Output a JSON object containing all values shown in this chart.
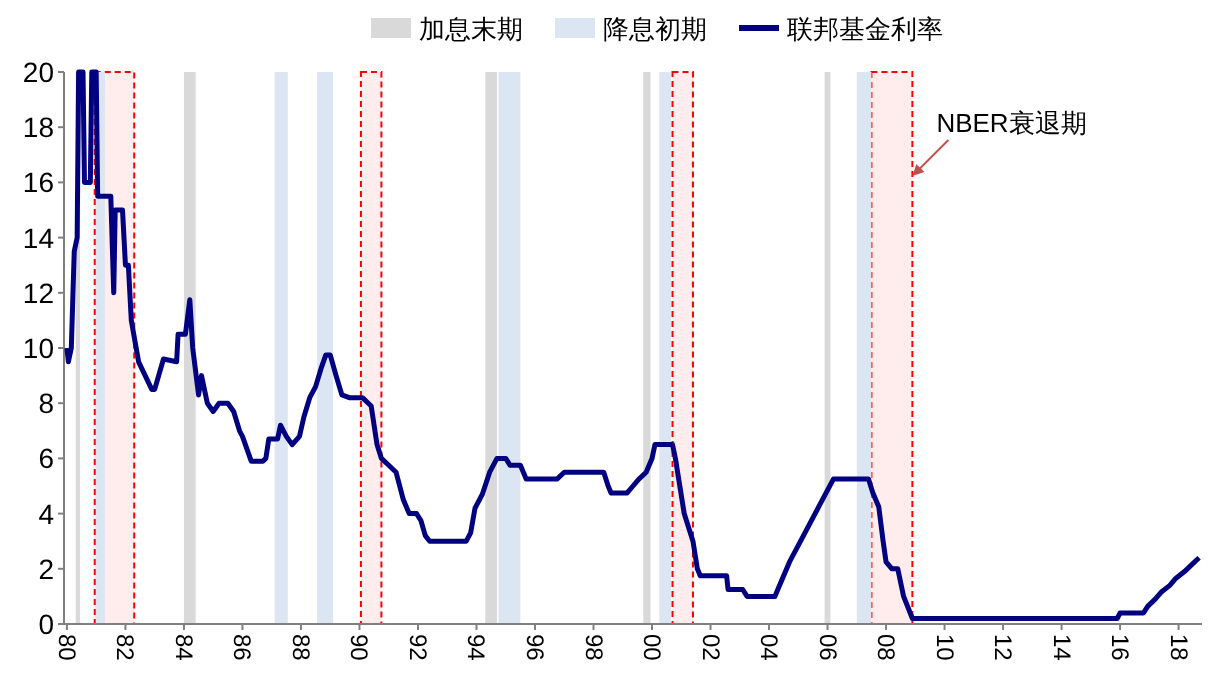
{
  "chart_data": {
    "type": "line",
    "legend": "top",
    "marker": "none",
    "line_style": "solid",
    "grid": false,
    "xlim": [
      1979.9,
      2018.8
    ],
    "ylim": [
      0,
      20
    ],
    "xticks": [
      {
        "value": 1980,
        "label": "80"
      },
      {
        "value": 1982,
        "label": "82"
      },
      {
        "value": 1984,
        "label": "84"
      },
      {
        "value": 1986,
        "label": "86"
      },
      {
        "value": 1988,
        "label": "88"
      },
      {
        "value": 1990,
        "label": "90"
      },
      {
        "value": 1992,
        "label": "92"
      },
      {
        "value": 1994,
        "label": "94"
      },
      {
        "value": 1996,
        "label": "96"
      },
      {
        "value": 1998,
        "label": "98"
      },
      {
        "value": 2000,
        "label": "00"
      },
      {
        "value": 2002,
        "label": "02"
      },
      {
        "value": 2004,
        "label": "04"
      },
      {
        "value": 2006,
        "label": "06"
      },
      {
        "value": 2008,
        "label": "08"
      },
      {
        "value": 2010,
        "label": "10"
      },
      {
        "value": 2012,
        "label": "12"
      },
      {
        "value": 2014,
        "label": "14"
      },
      {
        "value": 2016,
        "label": "16"
      },
      {
        "value": 2018,
        "label": "18"
      }
    ],
    "yticks": [
      0,
      2,
      4,
      6,
      8,
      10,
      12,
      14,
      16,
      18,
      20
    ],
    "bands": [
      {
        "axis": "x",
        "from": 1980.3,
        "to": 1980.45,
        "label": "加息末期",
        "color": "#d9d9d9"
      },
      {
        "axis": "x",
        "from": 1984.0,
        "to": 1984.4,
        "color": "#d9d9d9"
      },
      {
        "axis": "x",
        "from": 1994.3,
        "to": 1994.7,
        "color": "#d9d9d9"
      },
      {
        "axis": "x",
        "from": 1999.7,
        "to": 1999.95,
        "color": "#d9d9d9"
      },
      {
        "axis": "x",
        "from": 2005.9,
        "to": 2006.1,
        "color": "#d9d9d9"
      },
      {
        "axis": "x",
        "from": 1981.0,
        "to": 1981.3,
        "label": "降息初期",
        "color": "#dce6f2"
      },
      {
        "axis": "x",
        "from": 1987.1,
        "to": 1987.55,
        "color": "#dce6f2"
      },
      {
        "axis": "x",
        "from": 1988.55,
        "to": 1989.1,
        "color": "#dce6f2"
      },
      {
        "axis": "x",
        "from": 1994.75,
        "to": 1995.5,
        "color": "#dce6f2"
      },
      {
        "axis": "x",
        "from": 2000.25,
        "to": 2000.65,
        "color": "#dce6f2"
      },
      {
        "axis": "x",
        "from": 2007.0,
        "to": 2007.5,
        "color": "#dce6f2"
      },
      {
        "axis": "x",
        "from": 1980.95,
        "to": 1982.3,
        "color": "#ff0000"
      },
      {
        "axis": "x",
        "from": 1990.05,
        "to": 1990.75,
        "color": "#ff0000"
      },
      {
        "axis": "x",
        "from": 2000.7,
        "to": 2001.4,
        "color": "#ff0000"
      },
      {
        "axis": "x",
        "from": 2007.5,
        "to": 2008.9,
        "color": "#ff0000"
      }
    ],
    "annotations": [
      "NBER衰退期"
    ],
    "series": [
      {
        "name": "联邦基金利率",
        "color": "#000080",
        "x": [
          1980.0,
          1980.05,
          1980.15,
          1980.25,
          1980.35,
          1980.4,
          1980.55,
          1980.6,
          1980.8,
          1980.85,
          1981.0,
          1981.05,
          1981.5,
          1981.6,
          1981.65,
          1981.9,
          1982.0,
          1982.1,
          1982.2,
          1982.45,
          1982.9,
          1983.0,
          1983.3,
          1983.75,
          1983.8,
          1984.05,
          1984.2,
          1984.3,
          1984.5,
          1984.6,
          1984.8,
          1985.0,
          1985.2,
          1985.5,
          1985.7,
          1985.9,
          1986.0,
          1986.3,
          1986.7,
          1986.8,
          1986.9,
          1987.2,
          1987.3,
          1987.5,
          1987.7,
          1987.95,
          1988.1,
          1988.3,
          1988.5,
          1988.7,
          1988.85,
          1989.0,
          1989.2,
          1989.4,
          1989.65,
          1990.1,
          1990.4,
          1990.6,
          1990.75,
          1991.0,
          1991.25,
          1991.5,
          1991.7,
          1991.95,
          1992.1,
          1992.25,
          1992.4,
          1993.65,
          1993.8,
          1993.95,
          1994.2,
          1994.45,
          1994.7,
          1995.0,
          1995.15,
          1995.5,
          1995.7,
          1996.75,
          1997.0,
          1998.35,
          1998.5,
          1998.6,
          1999.15,
          1999.35,
          1999.55,
          1999.8,
          2000.0,
          2000.1,
          2000.7,
          2000.8,
          2000.95,
          2001.1,
          2001.25,
          2001.4,
          2001.55,
          2001.65,
          2002.55,
          2002.6,
          2003.1,
          2003.25,
          2004.2,
          2004.3,
          2004.7,
          2005.2,
          2005.7,
          2006.2,
          2007.4,
          2007.55,
          2007.75,
          2007.9,
          2008.0,
          2008.2,
          2008.4,
          2008.6,
          2008.9,
          2015.9,
          2016.0,
          2016.8,
          2016.95,
          2017.2,
          2017.4,
          2017.7,
          2017.9,
          2018.2,
          2018.45,
          2018.7
        ],
        "values": [
          10,
          9.5,
          10,
          13.5,
          14,
          20,
          20,
          16,
          16,
          20,
          20,
          15.5,
          15.5,
          12,
          15,
          15,
          13,
          13,
          11,
          9.5,
          8.5,
          8.5,
          9.6,
          9.5,
          10.5,
          10.5,
          11.75,
          10,
          8.3,
          9,
          8,
          7.7,
          8,
          8,
          7.7,
          7,
          6.8,
          5.9,
          5.9,
          6,
          6.7,
          6.7,
          7.2,
          6.8,
          6.5,
          6.8,
          7.5,
          8.2,
          8.6,
          9.3,
          9.75,
          9.75,
          9,
          8.3,
          8.2,
          8.2,
          7.9,
          6.5,
          6,
          5.75,
          5.5,
          4.5,
          4,
          4,
          3.75,
          3.2,
          3,
          3,
          3.3,
          4.2,
          4.7,
          5.5,
          6,
          6,
          5.75,
          5.75,
          5.25,
          5.25,
          5.5,
          5.5,
          5,
          4.75,
          4.75,
          5,
          5.25,
          5.5,
          6,
          6.5,
          6.5,
          6,
          5,
          4,
          3.5,
          3,
          2,
          1.75,
          1.75,
          1.25,
          1.25,
          1,
          1,
          1.25,
          2.25,
          3.25,
          4.25,
          5.25,
          5.25,
          4.75,
          4.25,
          3,
          2.25,
          2,
          2,
          1,
          0.2,
          0.2,
          0.4,
          0.4,
          0.65,
          0.9,
          1.15,
          1.4,
          1.65,
          1.9,
          2.15,
          2.4
        ]
      }
    ]
  }
}
